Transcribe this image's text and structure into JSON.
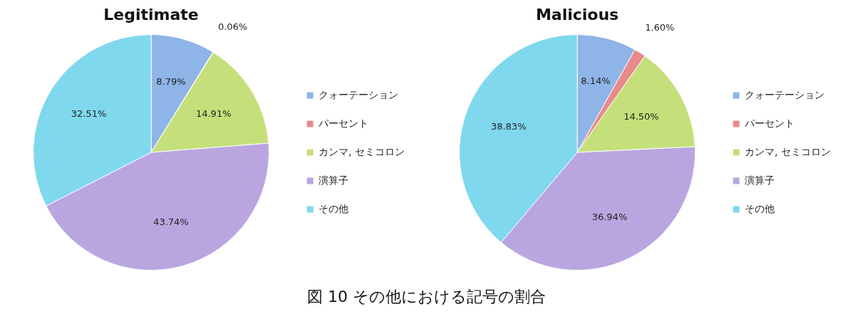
{
  "chart_data": [
    {
      "type": "pie",
      "title": "Legitimate",
      "categories": [
        "クォーテーション",
        "パーセント",
        "カンマ, セミコロン",
        "演算子",
        "その他"
      ],
      "values": [
        8.79,
        0.06,
        14.91,
        43.74,
        32.51
      ],
      "colors": [
        "#8fb4e8",
        "#e88a8a",
        "#c5e07a",
        "#b9a6e0",
        "#7fd8ee"
      ],
      "value_labels": [
        "8.79%",
        "0.06%",
        "14.91%",
        "43.74%",
        "32.51%"
      ],
      "legend": "right",
      "annotations": [
        "図 10 その他における記号の割合"
      ]
    },
    {
      "type": "pie",
      "title": "Malicious",
      "categories": [
        "クォーテーション",
        "パーセント",
        "カンマ, セミコロン",
        "演算子",
        "その他"
      ],
      "values": [
        8.14,
        1.6,
        14.5,
        36.94,
        38.83
      ],
      "colors": [
        "#8fb4e8",
        "#e88a8a",
        "#c5e07a",
        "#b9a6e0",
        "#7fd8ee"
      ],
      "value_labels": [
        "8.14%",
        "1.60%",
        "14.50%",
        "36.94%",
        "38.83%"
      ],
      "legend": "right"
    }
  ]
}
